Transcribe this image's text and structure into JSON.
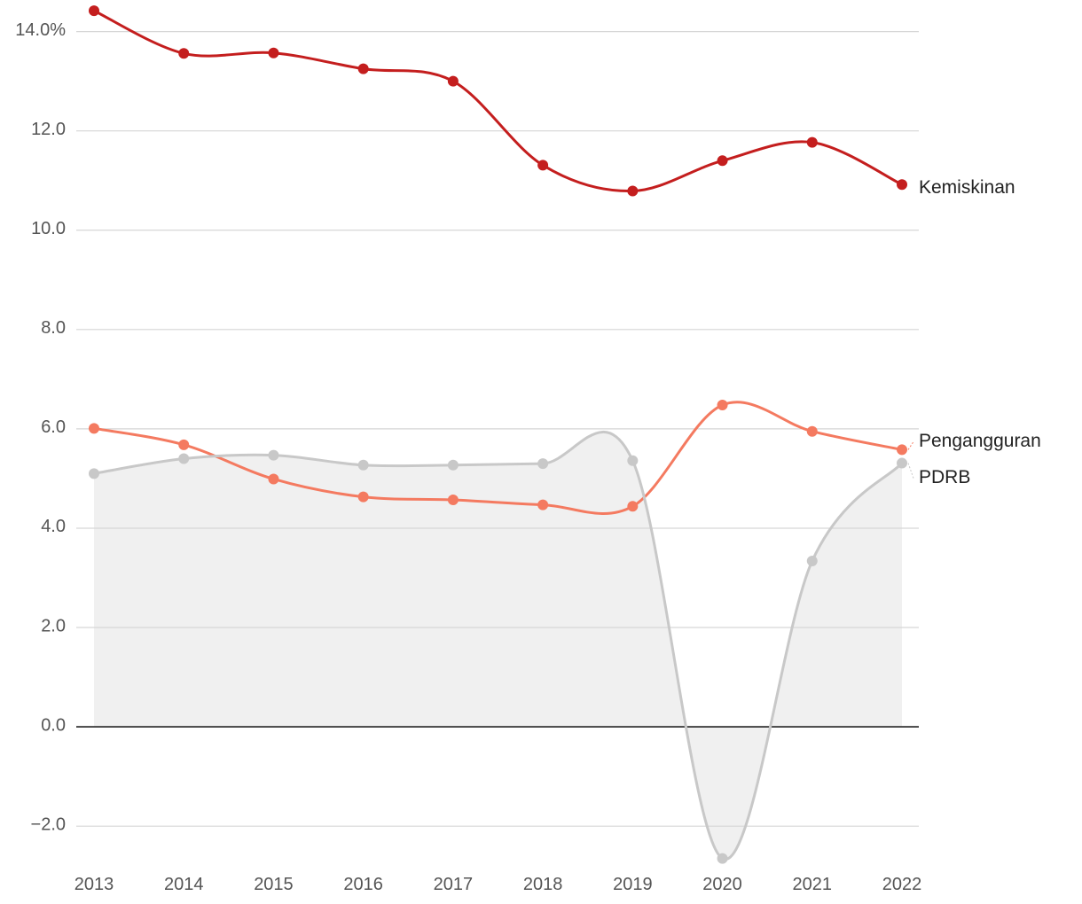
{
  "chart_data": {
    "type": "line",
    "title": "",
    "xlabel": "",
    "ylabel": "",
    "x": [
      "2013",
      "2014",
      "2015",
      "2016",
      "2017",
      "2018",
      "2019",
      "2020",
      "2021",
      "2022"
    ],
    "ylim": [
      -2.8,
      14.6
    ],
    "y_ticks": [
      -2.0,
      0.0,
      2.0,
      4.0,
      6.0,
      8.0,
      10.0,
      12.0,
      14.0
    ],
    "y_tick_labels": [
      "−2.0",
      "0.0",
      "2.0",
      "4.0",
      "6.0",
      "8.0",
      "10.0",
      "12.0",
      "14.0%"
    ],
    "grid": true,
    "legend": "direct labels at right end of lines",
    "series": [
      {
        "name": "Kemiskinan",
        "color": "#c41e1e",
        "area": false,
        "values": [
          14.42,
          13.56,
          13.57,
          13.25,
          13.0,
          11.31,
          10.79,
          11.4,
          11.77,
          10.92
        ]
      },
      {
        "name": "Pengangguran",
        "color": "#f47a60",
        "area": false,
        "values": [
          6.01,
          5.68,
          4.99,
          4.63,
          4.57,
          4.47,
          4.44,
          6.48,
          5.95,
          5.58
        ]
      },
      {
        "name": "PDRB",
        "color": "#c8c8c8",
        "area": true,
        "area_color": "#f0f0f0",
        "values": [
          5.1,
          5.4,
          5.47,
          5.27,
          5.27,
          5.3,
          5.36,
          -2.65,
          3.34,
          5.31
        ]
      }
    ]
  }
}
